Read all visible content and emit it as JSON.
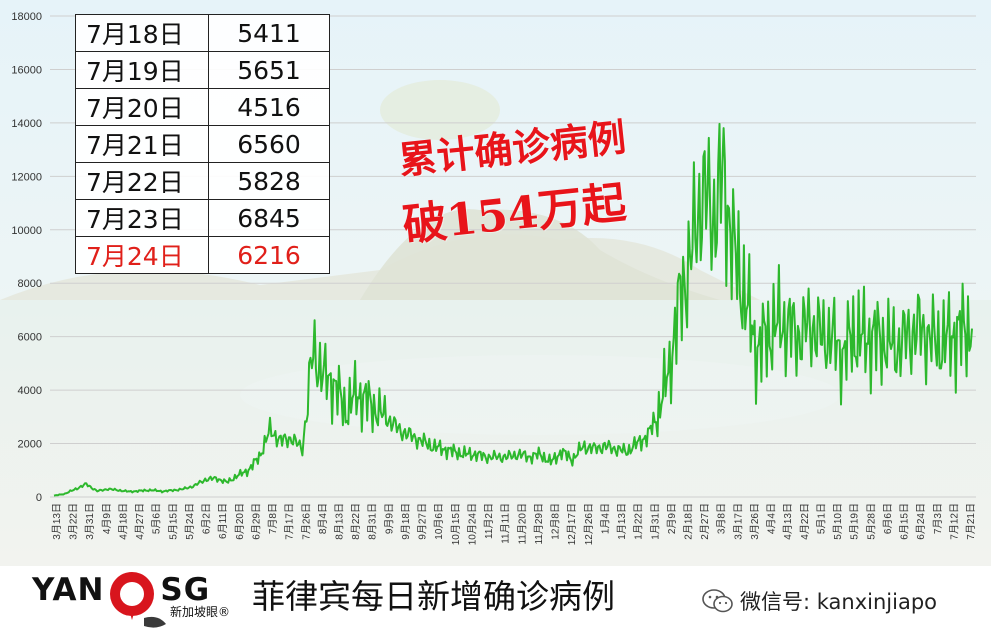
{
  "table": {
    "rows": [
      {
        "date": "7月18日",
        "value": "5411"
      },
      {
        "date": "7月19日",
        "value": "5651"
      },
      {
        "date": "7月20日",
        "value": "4516"
      },
      {
        "date": "7月21日",
        "value": "6560"
      },
      {
        "date": "7月22日",
        "value": "5828"
      },
      {
        "date": "7月23日",
        "value": "6845"
      },
      {
        "date": "7月24日",
        "value": "6216"
      }
    ]
  },
  "annotation": {
    "line1": "累计确诊病例",
    "line2": "破154万起"
  },
  "footer": {
    "logo_left": "YAN",
    "logo_right": "SG",
    "logo_sub": "新加坡眼®",
    "title": "菲律宾每日新增确诊病例",
    "wechat": "微信号: kanxinjiapo"
  },
  "colors": {
    "line": "#2db82d",
    "highlight": "#e0201a",
    "annotation": "#e8141a"
  },
  "chart_data": {
    "type": "line",
    "title": "菲律宾每日新增确诊病例",
    "xlabel": "",
    "ylabel": "",
    "ylim": [
      0,
      18000
    ],
    "yticks": [
      0,
      2000,
      4000,
      6000,
      8000,
      10000,
      12000,
      14000,
      16000,
      18000
    ],
    "grid": true,
    "x_ticks": [
      "3月13日",
      "3月22日",
      "3月31日",
      "4月9日",
      "4月18日",
      "4月27日",
      "5月6日",
      "5月15日",
      "5月24日",
      "6月2日",
      "6月11日",
      "6月20日",
      "6月29日",
      "7月8日",
      "7月17日",
      "7月26日",
      "8月4日",
      "8月13日",
      "8月22日",
      "8月31日",
      "9月9日",
      "9月18日",
      "9月27日",
      "10月6日",
      "10月15日",
      "10月24日",
      "11月2日",
      "11月11日",
      "11月20日",
      "11月29日",
      "12月8日",
      "12月17日",
      "12月26日",
      "1月4日",
      "1月13日",
      "1月22日",
      "1月31日",
      "2月9日",
      "2月18日",
      "2月27日",
      "3月8日",
      "3月17日",
      "3月26日",
      "4月4日",
      "4月13日",
      "4月22日",
      "5月1日",
      "5月10日",
      "5月19日",
      "5月28日",
      "6月6日",
      "6月15日",
      "6月24日",
      "7月3日",
      "7月12日",
      "7月21日"
    ],
    "series": [
      {
        "name": "",
        "values": [
          50,
          120,
          300,
          480,
          220,
          300,
          250,
          200,
          230,
          260,
          210,
          250,
          300,
          420,
          650,
          700,
          550,
          800,
          1000,
          1500,
          2500,
          2100,
          2200,
          1800,
          5500,
          4500,
          4200,
          3200,
          3900,
          3600,
          3200,
          2900,
          2500,
          2300,
          2100,
          1900,
          1800,
          1700,
          1600,
          1600,
          1500,
          1500,
          1500,
          1600,
          1500,
          1600,
          1300,
          1700,
          1400,
          1900,
          1800,
          1900,
          1800,
          1700,
          2000,
          2300,
          3200,
          4900,
          7500,
          9000,
          11500,
          10500,
          12000,
          9000,
          7500,
          5500,
          6000,
          6500,
          6400,
          6000,
          6500,
          6000,
          6000,
          5300,
          6100,
          5900,
          6000,
          5800,
          5600,
          6000,
          6300,
          6000,
          5700,
          6000,
          6200,
          6300
        ]
      }
    ]
  }
}
